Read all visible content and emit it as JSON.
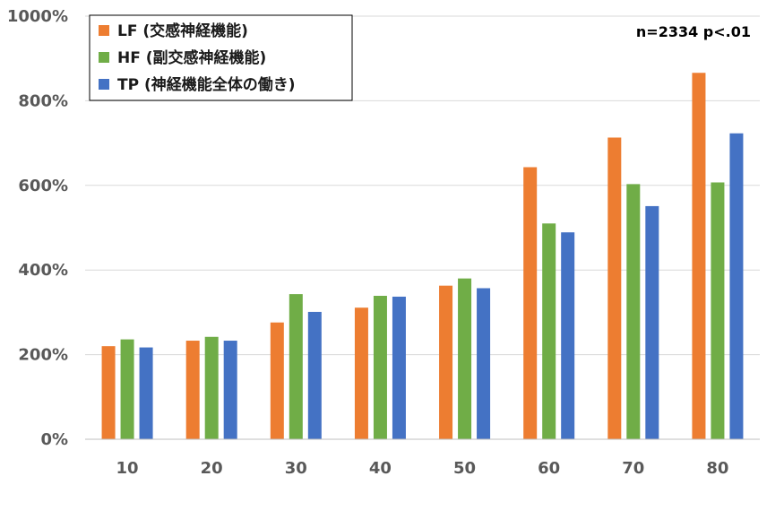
{
  "chart_data": {
    "type": "bar",
    "title": "",
    "xlabel": "",
    "ylabel": "",
    "categories": [
      "10",
      "20",
      "30",
      "40",
      "50",
      "60",
      "70",
      "80"
    ],
    "series": [
      {
        "name": "LF (交感神経機能)",
        "color": "#ED7D31",
        "values": [
          220,
          233,
          276,
          311,
          363,
          643,
          713,
          866
        ]
      },
      {
        "name": "HF (副交感神経機能)",
        "color": "#70AD47",
        "values": [
          236,
          242,
          343,
          339,
          380,
          510,
          603,
          607
        ]
      },
      {
        "name": "TP (神経機能全体の働き)",
        "color": "#4472C4",
        "values": [
          217,
          233,
          301,
          337,
          357,
          489,
          551,
          723
        ]
      }
    ],
    "ylim": [
      0,
      1000
    ],
    "yticks": [
      0,
      200,
      400,
      600,
      800,
      1000
    ],
    "ytick_labels": [
      "0%",
      "200%",
      "400%",
      "600%",
      "800%",
      "1000%"
    ],
    "grid": true,
    "legend_position": "top-left",
    "annotation": "n=2334  p<.01"
  }
}
